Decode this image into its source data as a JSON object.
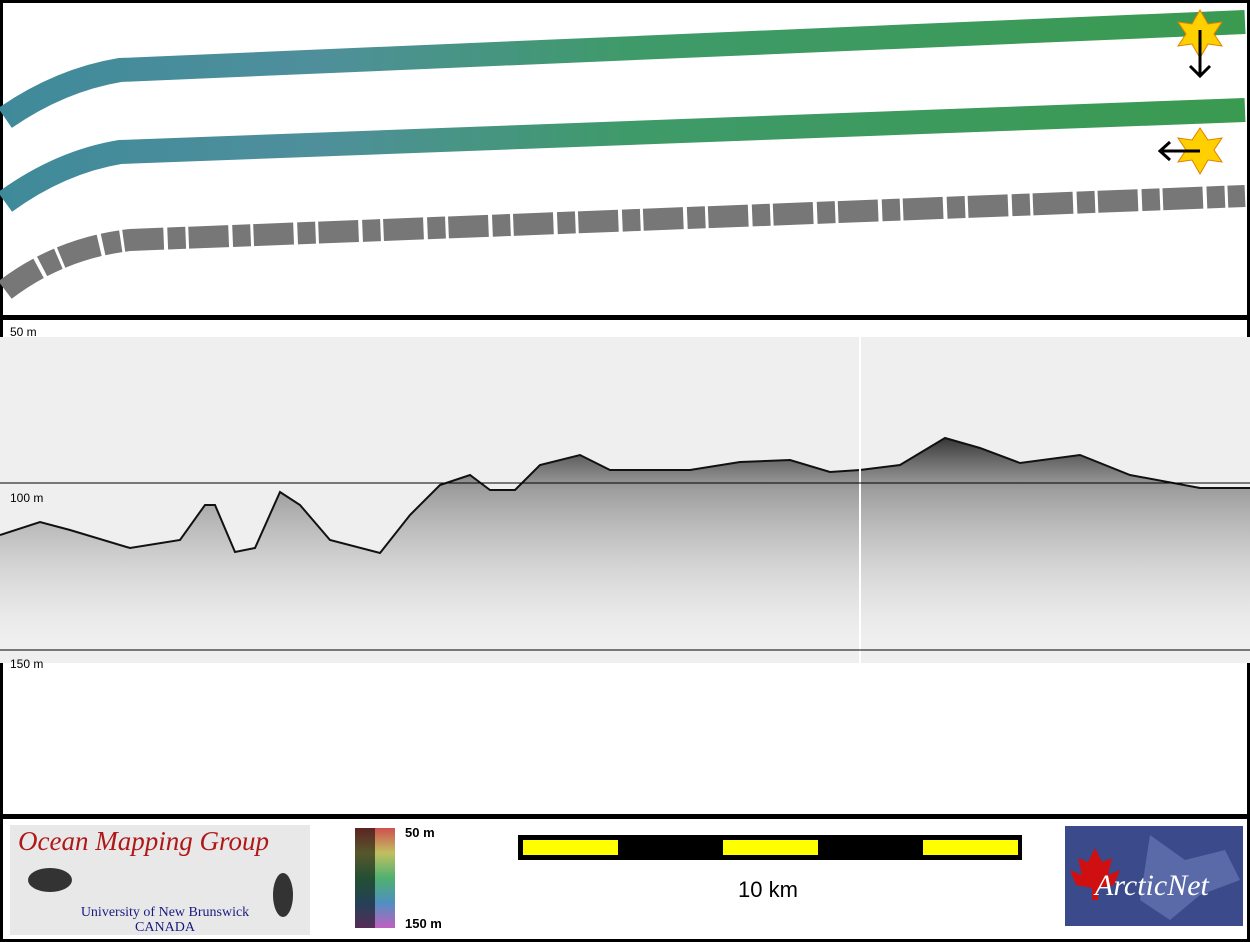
{
  "profile": {
    "depth_labels": [
      "50 m",
      "100 m",
      "150 m"
    ]
  },
  "footer": {
    "logo_left": {
      "title": "Ocean Mapping Group",
      "line1": "University of New Brunswick",
      "line2": "CANADA"
    },
    "colorbar": {
      "top": "50 m",
      "bottom": "150 m"
    },
    "scale_bar": {
      "label": "10 km"
    },
    "logo_right": {
      "text": "ArcticNet"
    }
  }
}
